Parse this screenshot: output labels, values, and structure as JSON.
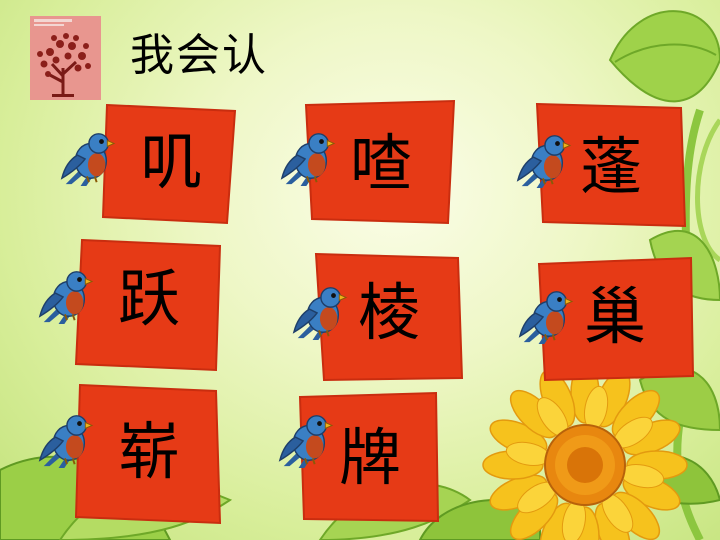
{
  "title": "我会认",
  "colors": {
    "card": "#e63a16",
    "card_stroke": "#c92d0f",
    "bird_body": "#3a7fc4",
    "bird_wing": "#2b5f9e",
    "bird_breast": "#c44a1e",
    "beak": "#f0b21c"
  },
  "icons": {
    "logo": "tree-logo-icon",
    "bird": "bird-icon",
    "sunflower": "sunflower-icon"
  },
  "cards": [
    {
      "char": "叽"
    },
    {
      "char": "喳"
    },
    {
      "char": "蓬"
    },
    {
      "char": "跃"
    },
    {
      "char": "棱"
    },
    {
      "char": "巢"
    },
    {
      "char": "崭"
    },
    {
      "char": "牌"
    }
  ]
}
